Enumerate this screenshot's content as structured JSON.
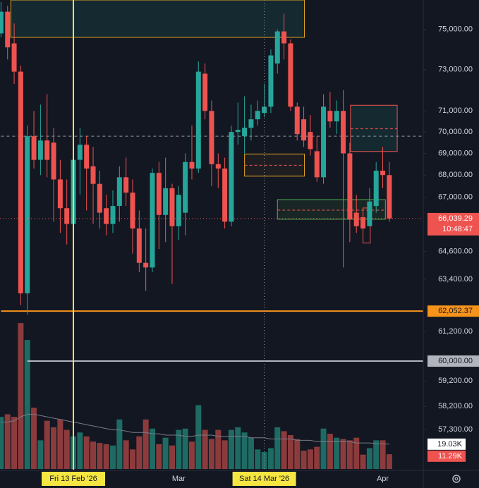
{
  "chart_data": {
    "type": "candlestick",
    "categories": [
      null,
      null,
      null,
      null,
      null,
      null,
      null,
      null,
      null,
      null,
      null,
      "Fri 13 Feb '26",
      null,
      null,
      null,
      null,
      null,
      null,
      null,
      null,
      null,
      null,
      null,
      null,
      null,
      null,
      null,
      "Mar",
      null,
      null,
      null,
      null,
      null,
      null,
      null,
      null,
      null,
      null,
      null,
      null,
      "Sat 14 Mar '26",
      null,
      null,
      null,
      null,
      null,
      null,
      null,
      null,
      null,
      null,
      null,
      null,
      null,
      null,
      null,
      null,
      null,
      "Apr",
      null
    ],
    "open": [
      74800,
      75900,
      74300,
      72900,
      62800,
      69800,
      68700,
      69600,
      69500,
      67800,
      66500,
      65800,
      68700,
      69400,
      68400,
      67600,
      66500,
      65800,
      66600,
      67900,
      67200,
      65600,
      64100,
      63900,
      68100,
      66200,
      67400,
      65700,
      66300,
      68600,
      68300,
      72800,
      71000,
      68500,
      68300,
      65900,
      70000,
      69800,
      70200,
      70600,
      70900,
      71200,
      73300,
      74900,
      74300,
      71200,
      70600,
      70000,
      69100,
      67900,
      71000,
      70500,
      71000,
      69000,
      66300,
      66100,
      65700,
      66600,
      68200,
      68000
    ],
    "high": [
      76400,
      76200,
      75300,
      73200,
      70300,
      71000,
      71300,
      71800,
      70200,
      68700,
      67800,
      69500,
      70200,
      69800,
      69300,
      68200,
      67100,
      67300,
      68400,
      68800,
      67800,
      66400,
      65600,
      68300,
      68600,
      68800,
      67600,
      67500,
      69000,
      70300,
      73400,
      73300,
      71500,
      69000,
      68800,
      70300,
      71400,
      71700,
      71300,
      71500,
      72300,
      74000,
      75000,
      75800,
      74500,
      71400,
      71200,
      70800,
      69800,
      71800,
      71900,
      71500,
      72000,
      69500,
      67100,
      66500,
      67400,
      68600,
      69300,
      68600
    ],
    "low": [
      74600,
      73500,
      72300,
      62300,
      61900,
      68300,
      68000,
      67900,
      65900,
      65400,
      64900,
      65600,
      67100,
      66400,
      65800,
      65600,
      65300,
      65400,
      65900,
      66600,
      64500,
      63700,
      62900,
      63700,
      64700,
      65000,
      63200,
      65100,
      65300,
      67800,
      68100,
      70600,
      67500,
      67400,
      65600,
      65700,
      69400,
      69000,
      69600,
      70300,
      70700,
      70900,
      72800,
      73500,
      71000,
      69600,
      69300,
      68900,
      67700,
      67600,
      70200,
      69900,
      63900,
      65000,
      65400,
      65400,
      65800,
      66300,
      67400,
      65900
    ],
    "close": [
      75900,
      74100,
      72900,
      62800,
      69800,
      68700,
      69600,
      68700,
      67800,
      66500,
      65800,
      68700,
      69400,
      68300,
      67600,
      66300,
      65800,
      66600,
      67900,
      67200,
      65600,
      64100,
      63900,
      68100,
      66200,
      67400,
      65700,
      67100,
      68600,
      68300,
      72900,
      71000,
      68500,
      68300,
      65900,
      70000,
      70100,
      70200,
      70600,
      71000,
      71200,
      73700,
      74900,
      74300,
      71200,
      69900,
      69600,
      69200,
      67900,
      71200,
      70500,
      71000,
      69000,
      66000,
      65700,
      65600,
      66800,
      68200,
      68000,
      66039.29
    ],
    "up_color": "#26a69a",
    "down_color": "#ef5350",
    "ylim": [
      55800,
      76500
    ],
    "log": true,
    "yticks": [
      {
        "value": 75000,
        "label": "75,000.00"
      },
      {
        "value": 73000,
        "label": "73,000.00"
      },
      {
        "value": 71000,
        "label": "71,000.00"
      },
      {
        "value": 70000,
        "label": "70,000.00"
      },
      {
        "value": 69000,
        "label": "69,000.00"
      },
      {
        "value": 68000,
        "label": "68,000.00"
      },
      {
        "value": 67000,
        "label": "67,000.00"
      },
      {
        "value": 64600,
        "label": "64,600.00"
      },
      {
        "value": 63400,
        "label": "63,400.00"
      },
      {
        "value": 61200,
        "label": "61,200.00"
      },
      {
        "value": 59200,
        "label": "59,200.00"
      },
      {
        "value": 58200,
        "label": "58,200.00"
      },
      {
        "value": 57300,
        "label": "57,300.00"
      }
    ],
    "last_price_label": "66,039.29",
    "countdown": "10:48:47",
    "volume": {
      "values": [
        40000,
        42000,
        40000,
        112000,
        99000,
        47000,
        22000,
        37000,
        32000,
        38000,
        30000,
        25000,
        28000,
        25000,
        21000,
        20000,
        19000,
        18000,
        38000,
        22000,
        15000,
        25000,
        38000,
        31000,
        19000,
        24000,
        18000,
        30000,
        31000,
        21000,
        49000,
        30000,
        23000,
        30000,
        22000,
        30000,
        32000,
        28000,
        24000,
        15000,
        13000,
        16000,
        32000,
        29000,
        26000,
        23000,
        14000,
        15000,
        17000,
        31000,
        27000,
        24000,
        23000,
        22000,
        24000,
        11000,
        16000,
        22000,
        22000,
        11290
      ],
      "last_value_label": "11.29K",
      "up_color": "#1e6b64",
      "down_color": "#8c3b3d",
      "y2lim": [
        0,
        360000
      ],
      "ma": {
        "values": [
          36000,
          36000,
          37000,
          40000,
          42000,
          42000,
          41000,
          40000,
          39000,
          38000,
          37000,
          36000,
          35000,
          34000,
          33000,
          32000,
          31000,
          30000,
          30000,
          29000,
          28000,
          28000,
          28000,
          27000,
          27000,
          26000,
          26000,
          26000,
          25000,
          25000,
          26000,
          26000,
          26000,
          25000,
          25000,
          25000,
          25000,
          25000,
          24000,
          24000,
          24000,
          23000,
          23000,
          23000,
          23000,
          22000,
          22000,
          22000,
          21000,
          21000,
          21000,
          21000,
          21000,
          21000,
          20000,
          20000,
          20000,
          19500,
          19200,
          19030
        ],
        "last_value_label": "19.03K",
        "color": "#787b86"
      }
    },
    "hlines": [
      {
        "value": 62052.37,
        "label": "62,052.37",
        "color": "#f7931a",
        "from": 0
      },
      {
        "value": 60000,
        "label": "60,000.00",
        "color": "#b2b5be",
        "from": 4
      },
      {
        "value": 69800,
        "color": "#9598a1",
        "dashed": true,
        "from": 0
      }
    ],
    "vlines": [
      {
        "index": 11,
        "color": "#f5e642",
        "dotted": false
      },
      {
        "index": 40,
        "color": "#9598a1",
        "dotted": true
      }
    ],
    "zones": [
      {
        "x0": 1.5,
        "x1": 46.1,
        "top": 76500,
        "bottom": 74600,
        "border": "#e0a31e",
        "fill": "rgba(38,166,154,0.13)"
      },
      {
        "x0": 37,
        "x1": 46.1,
        "top": 68970,
        "bottom": 67950,
        "mid": 68450,
        "border": "#e0a31e",
        "fill": "rgba(224,163,30,0.05)"
      },
      {
        "x0": 53.1,
        "x1": 60.2,
        "top": 71270,
        "bottom": 69090,
        "mid": 70150,
        "border": "#ef5350",
        "fill": "rgba(38,166,154,0.13)"
      },
      {
        "x0": 42,
        "x1": 58.4,
        "top": 66885,
        "bottom": 66008,
        "mid": 66414,
        "border": "#4caf50",
        "fill": "rgba(76,175,80,0.10)"
      },
      {
        "x0": 55,
        "x1": 56.1,
        "top": 66510,
        "bottom": 64960,
        "border": "#ef5350",
        "fill": "none"
      }
    ]
  }
}
